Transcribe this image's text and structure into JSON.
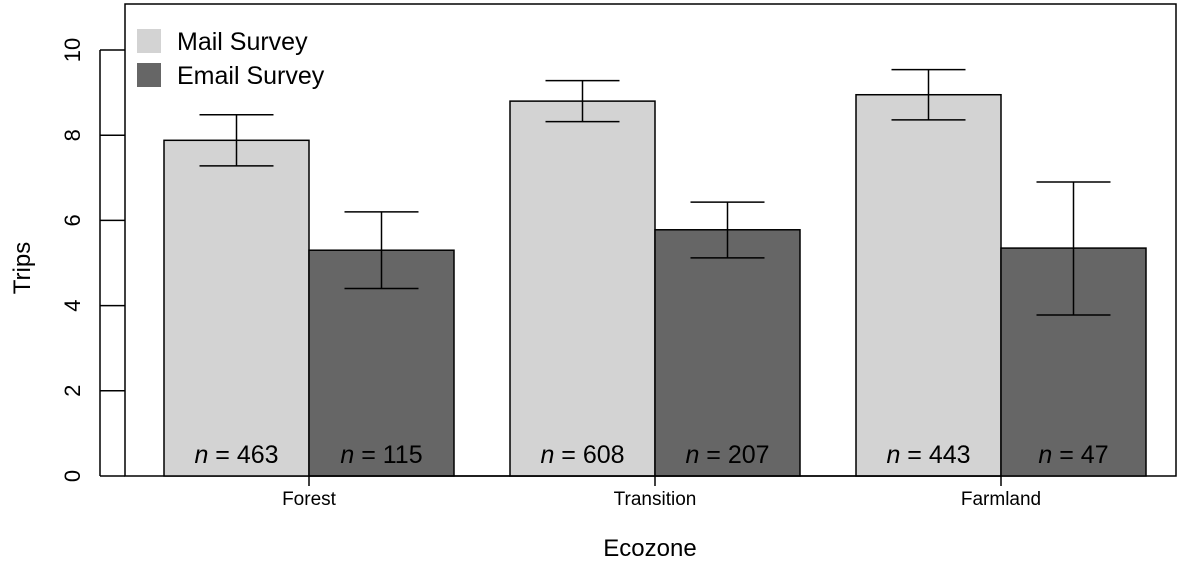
{
  "chart_data": {
    "type": "bar",
    "title": "",
    "xlabel": "Ecozone",
    "ylabel": "Trips",
    "ylim": [
      0,
      11
    ],
    "yticks": [
      0,
      2,
      4,
      6,
      8,
      10
    ],
    "categories": [
      "Forest",
      "Transition",
      "Farmland"
    ],
    "grid": false,
    "legend_position": "top-left",
    "series": [
      {
        "name": "Mail Survey",
        "color": "#d3d3d3",
        "values": [
          7.88,
          8.8,
          8.95
        ],
        "error_low": [
          7.28,
          8.32,
          8.36
        ],
        "error_high": [
          8.48,
          9.28,
          9.54
        ],
        "n_labels": [
          "463",
          "608",
          "443"
        ]
      },
      {
        "name": "Email Survey",
        "color": "#666666",
        "values": [
          5.3,
          5.78,
          5.35
        ],
        "error_low": [
          4.4,
          5.12,
          3.78
        ],
        "error_high": [
          6.2,
          6.43,
          6.9
        ],
        "n_labels": [
          "115",
          "207",
          "47"
        ]
      }
    ],
    "n_prefix": "n",
    "n_separator": " = "
  }
}
